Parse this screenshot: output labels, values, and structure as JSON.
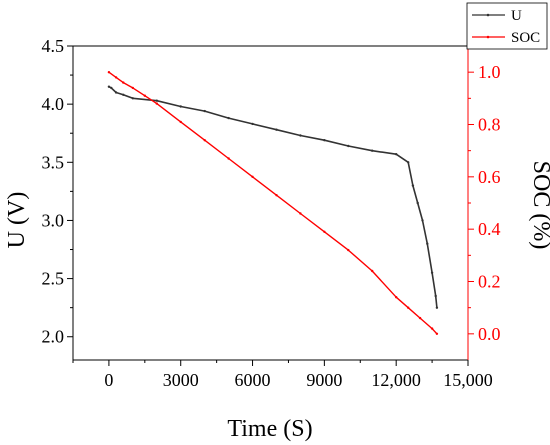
{
  "chart_data": {
    "type": "line",
    "title": "",
    "xlabel": "Time (S)",
    "ylabel_left": "U (V)",
    "ylabel_right": "SOC (%)",
    "xlim": [
      -1500,
      15000
    ],
    "ylim_left": [
      1.8,
      4.5
    ],
    "ylim_right": [
      -0.1,
      1.1
    ],
    "x_ticks": [
      0,
      3000,
      6000,
      9000,
      12000,
      15000
    ],
    "x_tick_labels": [
      "0",
      "3000",
      "6000",
      "9000",
      "12,000",
      "15,000"
    ],
    "y_left_ticks": [
      2.0,
      2.5,
      3.0,
      3.5,
      4.0,
      4.5
    ],
    "y_left_tick_labels": [
      "2.0",
      "2.5",
      "3.0",
      "3.5",
      "4.0",
      "4.5"
    ],
    "y_right_ticks": [
      0.0,
      0.2,
      0.4,
      0.6,
      0.8,
      1.0
    ],
    "y_right_tick_labels": [
      "0.0",
      "0.2",
      "0.4",
      "0.6",
      "0.8",
      "1.0"
    ],
    "grid": false,
    "legend_position": "top-right, outside plot",
    "colors": {
      "U": "#333333",
      "SOC": "#ff0000",
      "axis_right": "#ff0000"
    },
    "series": [
      {
        "name": "U",
        "axis": "left",
        "x": [
          0,
          100,
          300,
          600,
          1000,
          2000,
          3000,
          4000,
          5000,
          6000,
          7000,
          8000,
          9000,
          10000,
          11000,
          12000,
          12500,
          12700,
          12900,
          13100,
          13300,
          13500,
          13650,
          13700
        ],
        "values": [
          4.15,
          4.14,
          4.1,
          4.08,
          4.05,
          4.03,
          3.98,
          3.94,
          3.88,
          3.83,
          3.78,
          3.73,
          3.69,
          3.64,
          3.6,
          3.57,
          3.5,
          3.3,
          3.15,
          3.0,
          2.8,
          2.55,
          2.35,
          2.25
        ]
      },
      {
        "name": "SOC",
        "axis": "right",
        "x": [
          0,
          300,
          600,
          1000,
          1500,
          2000,
          3000,
          4000,
          5000,
          6000,
          7000,
          8000,
          9000,
          10000,
          11000,
          12000,
          12500,
          13000,
          13500,
          13700
        ],
        "values": [
          1.0,
          0.98,
          0.96,
          0.94,
          0.91,
          0.88,
          0.81,
          0.74,
          0.67,
          0.6,
          0.53,
          0.46,
          0.39,
          0.32,
          0.24,
          0.14,
          0.1,
          0.06,
          0.02,
          0.0
        ]
      }
    ]
  }
}
